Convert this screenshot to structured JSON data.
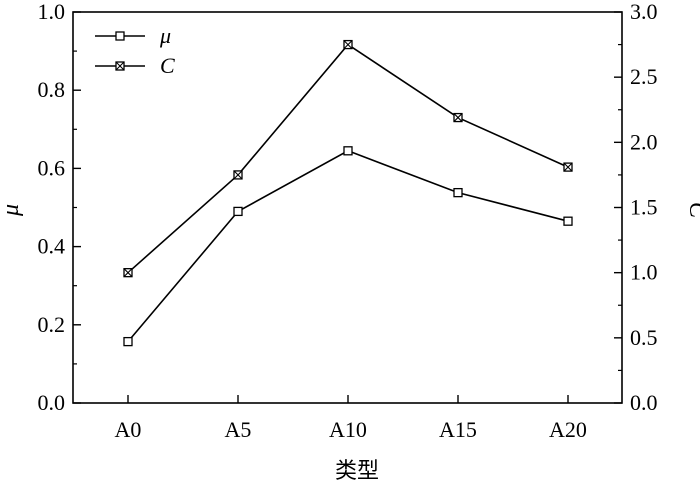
{
  "chart_data": {
    "type": "line",
    "categories": [
      "A0",
      "A5",
      "A10",
      "A15",
      "A20"
    ],
    "series": [
      {
        "name": "μ",
        "axis": "left",
        "marker": "open-square",
        "values": [
          0.157,
          0.49,
          0.645,
          0.538,
          0.465
        ]
      },
      {
        "name": "C",
        "axis": "right",
        "marker": "crossed-square",
        "values": [
          1.0,
          1.75,
          2.75,
          2.19,
          1.81
        ]
      }
    ],
    "xlabel": "类型",
    "ylabel_left": "μ",
    "ylabel_right": "C",
    "ylim_left": [
      0.0,
      1.0
    ],
    "ylim_right": [
      0.0,
      3.0
    ],
    "yticks_left": [
      "0.0",
      "0.2",
      "0.4",
      "0.6",
      "0.8",
      "1.0"
    ],
    "yticks_right": [
      "0.0",
      "0.5",
      "1.0",
      "1.5",
      "2.0",
      "2.5",
      "3.0"
    ],
    "legend_position": "top-left",
    "grid": false,
    "line_color": "#000000"
  }
}
